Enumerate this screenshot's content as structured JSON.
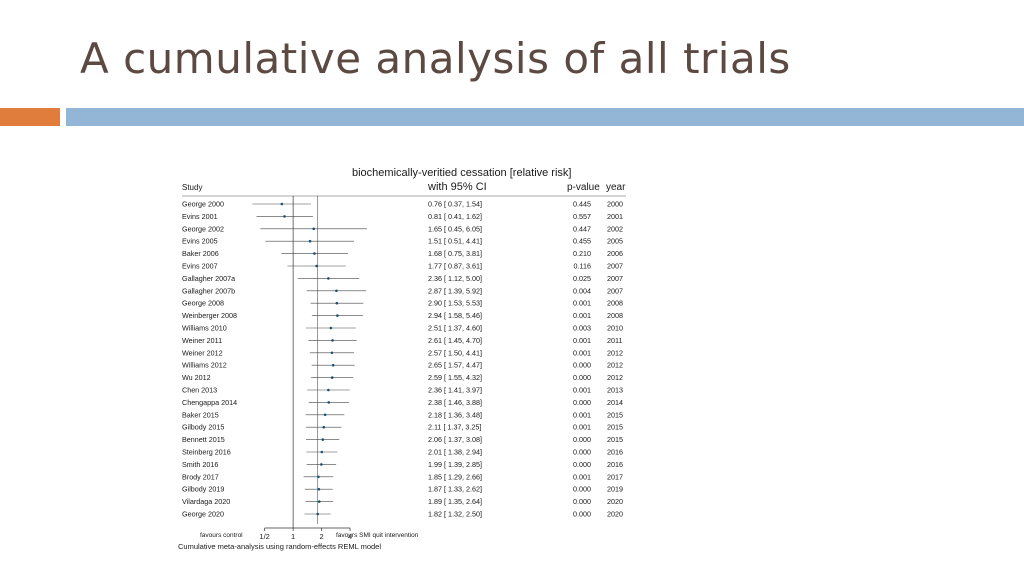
{
  "slide": {
    "title": "A cumulative analysis of all trials"
  },
  "chart_data": {
    "type": "forest",
    "title": "biochemically-veritied cessation [relative risk]",
    "subtitle": "with 95% CI",
    "columns": {
      "study": "Study",
      "pvalue": "p-value",
      "year": "year"
    },
    "x_scale": "log",
    "reference_value": 1,
    "x_ticks": [
      {
        "value": 0.5,
        "label": "1/2"
      },
      {
        "value": 1,
        "label": "1"
      },
      {
        "value": 2,
        "label": "2"
      },
      {
        "value": 4,
        "label": "4"
      }
    ],
    "xlim": [
      0.35,
      6.5
    ],
    "favours_left": "favours control",
    "favours_right": "favours SMI quit intervention",
    "footnote": "Cumulative meta-analysis using random-effects REML model",
    "rows": [
      {
        "study": "George 2000",
        "rr": 0.76,
        "lo": 0.37,
        "hi": 1.54,
        "ci_text": "0.76 [ 0.37, 1.54]",
        "p": "0.445",
        "year": "2000"
      },
      {
        "study": "Evins 2001",
        "rr": 0.81,
        "lo": 0.41,
        "hi": 1.62,
        "ci_text": "0.81 [ 0.41, 1.62]",
        "p": "0.557",
        "year": "2001"
      },
      {
        "study": "George 2002",
        "rr": 1.65,
        "lo": 0.45,
        "hi": 6.05,
        "ci_text": "1.65 [ 0.45, 6.05]",
        "p": "0.447",
        "year": "2002"
      },
      {
        "study": "Evins 2005",
        "rr": 1.51,
        "lo": 0.51,
        "hi": 4.41,
        "ci_text": "1.51 [ 0.51, 4.41]",
        "p": "0.455",
        "year": "2005"
      },
      {
        "study": "Baker 2006",
        "rr": 1.68,
        "lo": 0.75,
        "hi": 3.81,
        "ci_text": "1.68 [ 0.75, 3.81]",
        "p": "0.210",
        "year": "2006"
      },
      {
        "study": "Evins 2007",
        "rr": 1.77,
        "lo": 0.87,
        "hi": 3.61,
        "ci_text": "1.77 [ 0.87, 3.61]",
        "p": "0.116",
        "year": "2007"
      },
      {
        "study": "Gallagher 2007a",
        "rr": 2.36,
        "lo": 1.12,
        "hi": 5.0,
        "ci_text": "2.36 [ 1.12, 5.00]",
        "p": "0.025",
        "year": "2007"
      },
      {
        "study": "Gallagher 2007b",
        "rr": 2.87,
        "lo": 1.39,
        "hi": 5.92,
        "ci_text": "2.87 [ 1.39, 5.92]",
        "p": "0.004",
        "year": "2007"
      },
      {
        "study": "George 2008",
        "rr": 2.9,
        "lo": 1.53,
        "hi": 5.53,
        "ci_text": "2.90 [ 1.53, 5.53]",
        "p": "0.001",
        "year": "2008"
      },
      {
        "study": "Weinberger 2008",
        "rr": 2.94,
        "lo": 1.58,
        "hi": 5.46,
        "ci_text": "2.94 [ 1.58, 5.46]",
        "p": "0.001",
        "year": "2008"
      },
      {
        "study": "Williams 2010",
        "rr": 2.51,
        "lo": 1.37,
        "hi": 4.6,
        "ci_text": "2.51 [ 1.37, 4.60]",
        "p": "0.003",
        "year": "2010"
      },
      {
        "study": "Weiner 2011",
        "rr": 2.61,
        "lo": 1.45,
        "hi": 4.7,
        "ci_text": "2.61 [ 1.45, 4.70]",
        "p": "0.001",
        "year": "2011"
      },
      {
        "study": "Weiner 2012",
        "rr": 2.57,
        "lo": 1.5,
        "hi": 4.41,
        "ci_text": "2.57 [ 1.50, 4.41]",
        "p": "0.001",
        "year": "2012"
      },
      {
        "study": "Williams 2012",
        "rr": 2.65,
        "lo": 1.57,
        "hi": 4.47,
        "ci_text": "2.65 [ 1.57, 4.47]",
        "p": "0.000",
        "year": "2012"
      },
      {
        "study": "Wu 2012",
        "rr": 2.59,
        "lo": 1.55,
        "hi": 4.32,
        "ci_text": "2.59 [ 1.55, 4.32]",
        "p": "0.000",
        "year": "2012"
      },
      {
        "study": "Chen 2013",
        "rr": 2.36,
        "lo": 1.41,
        "hi": 3.97,
        "ci_text": "2.36 [ 1.41, 3.97]",
        "p": "0.001",
        "year": "2013"
      },
      {
        "study": "Chengappa 2014",
        "rr": 2.38,
        "lo": 1.46,
        "hi": 3.88,
        "ci_text": "2.38 [ 1.46, 3.88]",
        "p": "0.000",
        "year": "2014"
      },
      {
        "study": "Baker 2015",
        "rr": 2.18,
        "lo": 1.36,
        "hi": 3.48,
        "ci_text": "2.18 [ 1.36, 3.48]",
        "p": "0.001",
        "year": "2015"
      },
      {
        "study": "Gilbody 2015",
        "rr": 2.11,
        "lo": 1.37,
        "hi": 3.25,
        "ci_text": "2.11 [ 1.37, 3.25]",
        "p": "0.001",
        "year": "2015"
      },
      {
        "study": "Bennett 2015",
        "rr": 2.06,
        "lo": 1.37,
        "hi": 3.08,
        "ci_text": "2.06 [ 1.37, 3.08]",
        "p": "0.000",
        "year": "2015"
      },
      {
        "study": "Steinberg 2016",
        "rr": 2.01,
        "lo": 1.38,
        "hi": 2.94,
        "ci_text": "2.01 [ 1.38, 2.94]",
        "p": "0.000",
        "year": "2016"
      },
      {
        "study": "Smith 2016",
        "rr": 1.99,
        "lo": 1.39,
        "hi": 2.85,
        "ci_text": "1.99 [ 1.39, 2.85]",
        "p": "0.000",
        "year": "2016"
      },
      {
        "study": "Brody 2017",
        "rr": 1.85,
        "lo": 1.29,
        "hi": 2.66,
        "ci_text": "1.85 [ 1.29, 2.66]",
        "p": "0.001",
        "year": "2017"
      },
      {
        "study": "Gilbody 2019",
        "rr": 1.87,
        "lo": 1.33,
        "hi": 2.62,
        "ci_text": "1.87 [ 1.33, 2.62]",
        "p": "0.000",
        "year": "2019"
      },
      {
        "study": "Vilardaga 2020",
        "rr": 1.89,
        "lo": 1.35,
        "hi": 2.64,
        "ci_text": "1.89 [ 1.35, 2.64]",
        "p": "0.000",
        "year": "2020"
      },
      {
        "study": "George 2020",
        "rr": 1.82,
        "lo": 1.32,
        "hi": 2.5,
        "ci_text": "1.82 [ 1.32, 2.50]",
        "p": "0.000",
        "year": "2020"
      }
    ],
    "colors": {
      "accent_orange": "#e07c3c",
      "accent_blue": "#93b6d6",
      "title_text": "#5c4a42"
    }
  }
}
